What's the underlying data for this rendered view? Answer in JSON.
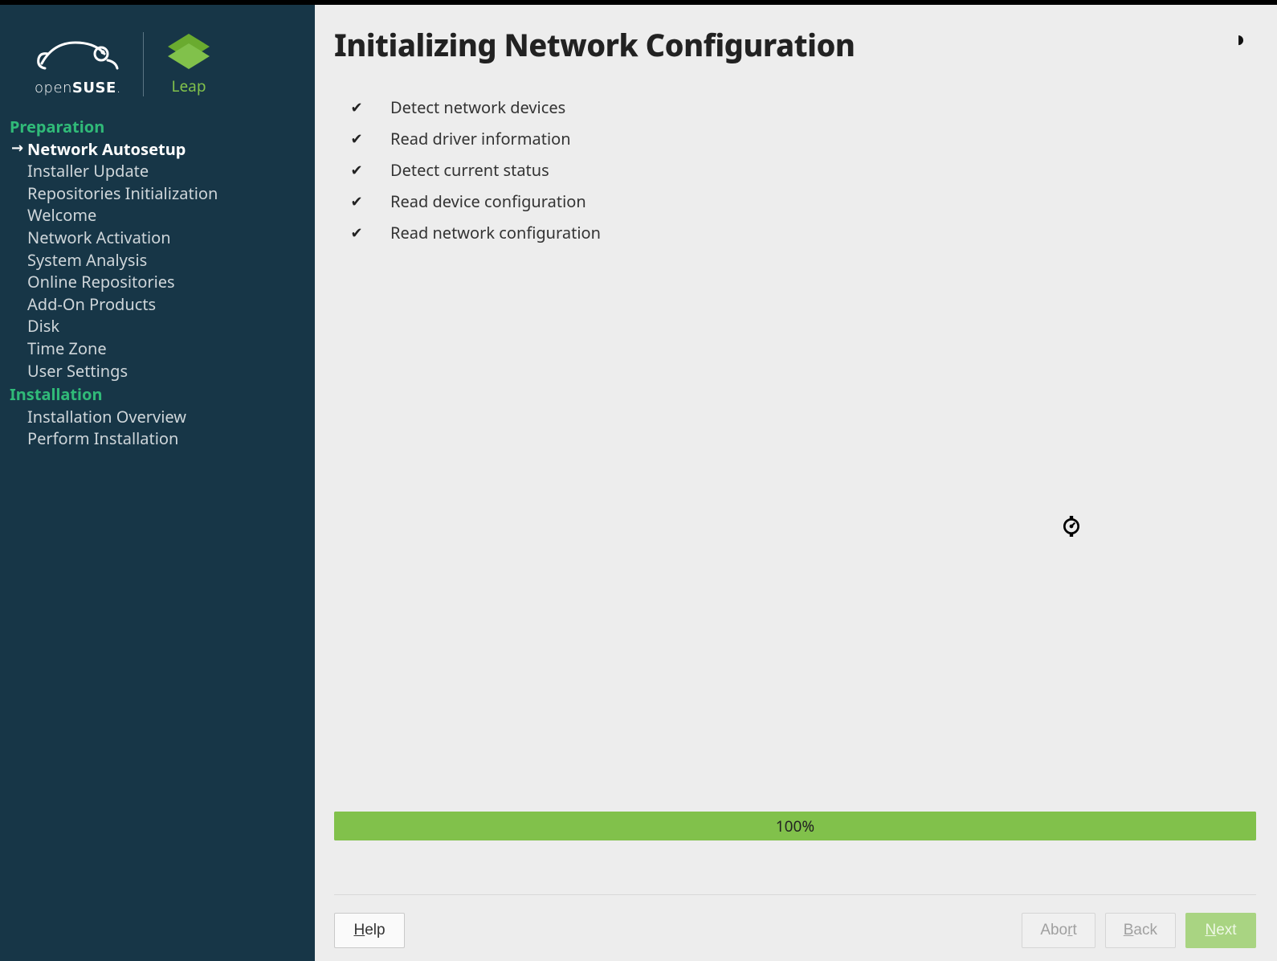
{
  "brand": {
    "name1": "openSUSE",
    "name2": "Leap"
  },
  "colors": {
    "sidebar_bg": "#173647",
    "accent_green": "#30ba78",
    "progress_green": "#81c14b",
    "main_bg": "#ededed",
    "text_dark": "#222222",
    "text_muted": "#cfd6da",
    "button_border": "#c9c9c9"
  },
  "sidebar": {
    "sections": [
      {
        "title": "Preparation",
        "items": [
          {
            "label": "Network Autosetup",
            "active": true
          },
          {
            "label": "Installer Update"
          },
          {
            "label": "Repositories Initialization"
          },
          {
            "label": "Welcome"
          },
          {
            "label": "Network Activation"
          },
          {
            "label": "System Analysis"
          },
          {
            "label": "Online Repositories"
          },
          {
            "label": "Add-On Products"
          },
          {
            "label": "Disk"
          },
          {
            "label": "Time Zone"
          },
          {
            "label": "User Settings"
          }
        ]
      },
      {
        "title": "Installation",
        "items": [
          {
            "label": "Installation Overview"
          },
          {
            "label": "Perform Installation"
          }
        ]
      }
    ]
  },
  "main": {
    "title": "Initializing Network Configuration",
    "checklist": [
      {
        "done": true,
        "label": "Detect network devices"
      },
      {
        "done": true,
        "label": "Read driver information"
      },
      {
        "done": true,
        "label": "Detect current status"
      },
      {
        "done": true,
        "label": "Read device configuration"
      },
      {
        "done": true,
        "label": "Read network configuration"
      }
    ],
    "progress": {
      "percent": 100,
      "label": "100%"
    },
    "buttons": {
      "help": "Help",
      "abort": "Abort",
      "back": "Back",
      "next": "Next",
      "abort_disabled": true,
      "back_disabled": true,
      "next_disabled": true
    }
  }
}
